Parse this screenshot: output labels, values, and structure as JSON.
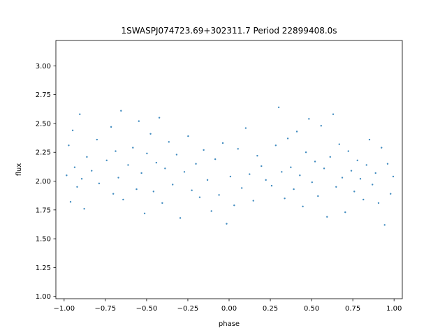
{
  "chart_data": {
    "type": "scatter",
    "title": "1SWASPJ074723.69+302311.7 Period 22899408.0s",
    "xlabel": "phase",
    "ylabel": "flux",
    "xlim": [
      -1.05,
      1.05
    ],
    "ylim": [
      0.98,
      3.22
    ],
    "grid": false,
    "legend": "none",
    "point_color": "#1f77b4",
    "x_ticks": [
      -1.0,
      -0.75,
      -0.5,
      -0.25,
      0.0,
      0.25,
      0.5,
      0.75,
      1.0
    ],
    "x_tick_labels": [
      "−1.00",
      "−0.75",
      "−0.50",
      "−0.25",
      "0.00",
      "0.25",
      "0.50",
      "0.75",
      "1.00"
    ],
    "y_ticks": [
      1.0,
      1.25,
      1.5,
      1.75,
      2.0,
      2.25,
      2.5,
      2.75,
      3.0
    ],
    "y_tick_labels": [
      "1.00",
      "1.25",
      "1.50",
      "1.75",
      "2.00",
      "2.25",
      "2.50",
      "2.75",
      "3.00"
    ],
    "series": [
      {
        "points": [
          [
            -0.985,
            2.05
          ],
          [
            -0.972,
            2.31
          ],
          [
            -0.961,
            1.82
          ],
          [
            -0.948,
            2.44
          ],
          [
            -0.936,
            2.12
          ],
          [
            -0.921,
            1.95
          ],
          [
            -0.905,
            2.58
          ],
          [
            -0.893,
            2.02
          ],
          [
            -0.878,
            1.76
          ],
          [
            -0.862,
            2.21
          ],
          [
            -0.833,
            2.09
          ],
          [
            -0.801,
            2.36
          ],
          [
            -0.788,
            1.98
          ],
          [
            -0.742,
            2.18
          ],
          [
            -0.715,
            2.47
          ],
          [
            -0.702,
            1.89
          ],
          [
            -0.688,
            2.26
          ],
          [
            -0.671,
            2.03
          ],
          [
            -0.655,
            2.61
          ],
          [
            -0.642,
            1.84
          ],
          [
            -0.612,
            2.14
          ],
          [
            -0.583,
            2.29
          ],
          [
            -0.561,
            1.93
          ],
          [
            -0.547,
            2.52
          ],
          [
            -0.531,
            2.07
          ],
          [
            -0.512,
            1.72
          ],
          [
            -0.498,
            2.24
          ],
          [
            -0.476,
            2.41
          ],
          [
            -0.458,
            1.91
          ],
          [
            -0.441,
            2.16
          ],
          [
            -0.423,
            2.55
          ],
          [
            -0.405,
            1.81
          ],
          [
            -0.388,
            2.11
          ],
          [
            -0.365,
            2.34
          ],
          [
            -0.342,
            1.97
          ],
          [
            -0.318,
            2.23
          ],
          [
            -0.296,
            1.68
          ],
          [
            -0.271,
            2.08
          ],
          [
            -0.248,
            2.39
          ],
          [
            -0.226,
            1.92
          ],
          [
            -0.201,
            2.15
          ],
          [
            -0.178,
            1.86
          ],
          [
            -0.154,
            2.27
          ],
          [
            -0.131,
            2.01
          ],
          [
            -0.107,
            1.74
          ],
          [
            -0.084,
            2.19
          ],
          [
            -0.061,
            1.88
          ],
          [
            -0.038,
            2.33
          ],
          [
            -0.015,
            1.63
          ],
          [
            0.008,
            2.04
          ],
          [
            0.031,
            1.79
          ],
          [
            0.054,
            2.28
          ],
          [
            0.077,
            1.94
          ],
          [
            0.101,
            2.46
          ],
          [
            0.124,
            2.06
          ],
          [
            0.147,
            1.83
          ],
          [
            0.171,
            2.22
          ],
          [
            0.196,
            2.13
          ],
          [
            0.223,
            2.01
          ],
          [
            0.258,
            1.96
          ],
          [
            0.283,
            2.31
          ],
          [
            0.301,
            2.64
          ],
          [
            0.319,
            2.08
          ],
          [
            0.337,
            1.85
          ],
          [
            0.356,
            2.37
          ],
          [
            0.374,
            2.12
          ],
          [
            0.392,
            1.93
          ],
          [
            0.411,
            2.43
          ],
          [
            0.429,
            2.05
          ],
          [
            0.447,
            1.78
          ],
          [
            0.466,
            2.25
          ],
          [
            0.484,
            2.54
          ],
          [
            0.503,
            1.99
          ],
          [
            0.521,
            2.17
          ],
          [
            0.539,
            1.87
          ],
          [
            0.558,
            2.48
          ],
          [
            0.576,
            2.11
          ],
          [
            0.594,
            1.69
          ],
          [
            0.613,
            2.21
          ],
          [
            0.631,
            2.58
          ],
          [
            0.649,
            1.95
          ],
          [
            0.668,
            2.32
          ],
          [
            0.686,
            2.03
          ],
          [
            0.704,
            1.73
          ],
          [
            0.723,
            2.26
          ],
          [
            0.741,
            2.09
          ],
          [
            0.759,
            1.91
          ],
          [
            0.778,
            2.18
          ],
          [
            0.796,
            2.02
          ],
          [
            0.814,
            1.84
          ],
          [
            0.833,
            2.14
          ],
          [
            0.851,
            2.36
          ],
          [
            0.869,
            1.97
          ],
          [
            0.888,
            2.07
          ],
          [
            0.906,
            1.81
          ],
          [
            0.924,
            2.29
          ],
          [
            0.943,
            1.62
          ],
          [
            0.961,
            2.15
          ],
          [
            0.979,
            1.89
          ],
          [
            0.995,
            2.04
          ]
        ]
      }
    ]
  }
}
